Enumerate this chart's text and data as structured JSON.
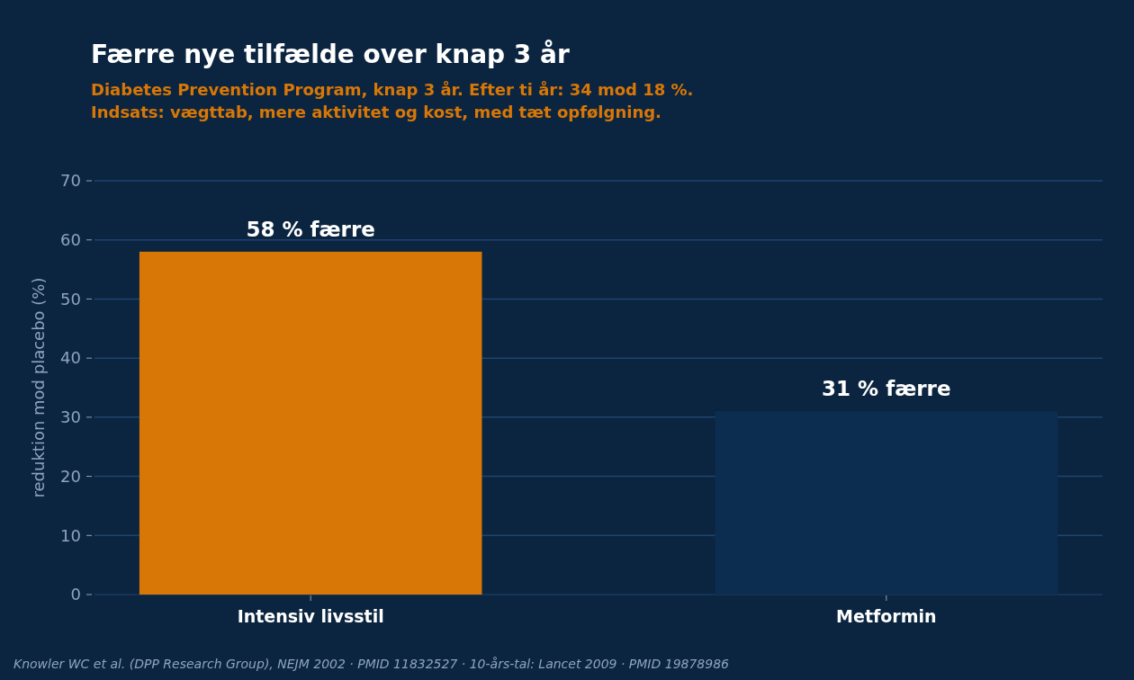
{
  "chart_data": {
    "type": "bar",
    "title": "Færre nye tilfælde over knap 3 år",
    "subtitle": "Diabetes Prevention Program, knap 3 år. Efter ti år: 34 mod 18 %.\nIndsats: vægttab, mere aktivitet og kost, med tæt opfølgning.",
    "ylabel": "reduktion mod placebo (%)",
    "categories": [
      "Intensiv livsstil",
      "Metformin"
    ],
    "values": [
      58,
      31
    ],
    "colors": [
      "#d97706",
      "#0d2d50"
    ],
    "value_labels": [
      "58 % færre",
      "31 % færre"
    ],
    "ylim": [
      0,
      70
    ],
    "yticks": [
      0,
      10,
      20,
      30,
      40,
      50,
      60,
      70
    ],
    "grid": "y",
    "annotations": [
      "Knowler WC et al. (DPP Research Group), NEJM 2002 · PMID 11832527 · 10-års-tal: Lancet 2009 · PMID 19878986"
    ]
  }
}
